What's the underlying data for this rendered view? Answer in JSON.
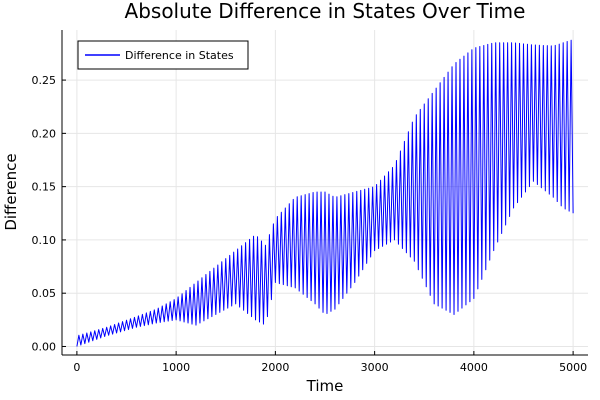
{
  "chart_data": {
    "type": "line",
    "title": "Absolute Difference in States Over Time",
    "xlabel": "Time",
    "ylabel": "Difference",
    "xlim": [
      -150,
      5150
    ],
    "ylim": [
      -0.008,
      0.297
    ],
    "xticks": [
      0,
      1000,
      2000,
      3000,
      4000,
      5000
    ],
    "xtick_labels": [
      "0",
      "1000",
      "2000",
      "3000",
      "4000",
      "5000"
    ],
    "yticks": [
      0.0,
      0.05,
      0.1,
      0.15,
      0.2,
      0.25
    ],
    "ytick_labels": [
      "0.00",
      "0.05",
      "0.10",
      "0.15",
      "0.20",
      "0.25"
    ],
    "grid": true,
    "legend_position": "top-left",
    "series": [
      {
        "name": "Difference in States",
        "color": "#0000ff",
        "period": 40,
        "envelope": {
          "x": [
            0,
            300,
            600,
            800,
            1000,
            1200,
            1400,
            1600,
            1800,
            1900,
            2000,
            2200,
            2400,
            2500,
            2600,
            2800,
            3000,
            3200,
            3400,
            3600,
            3800,
            4000,
            4200,
            4400,
            4600,
            4800,
            4900,
            5000
          ],
          "upper": [
            0.01,
            0.018,
            0.028,
            0.035,
            0.045,
            0.06,
            0.075,
            0.09,
            0.105,
            0.095,
            0.12,
            0.14,
            0.145,
            0.145,
            0.14,
            0.145,
            0.15,
            0.17,
            0.215,
            0.24,
            0.265,
            0.28,
            0.285,
            0.285,
            0.283,
            0.282,
            0.285,
            0.288
          ],
          "lower": [
            0.0,
            0.01,
            0.018,
            0.022,
            0.025,
            0.02,
            0.03,
            0.04,
            0.025,
            0.02,
            0.06,
            0.055,
            0.04,
            0.03,
            0.035,
            0.06,
            0.09,
            0.1,
            0.08,
            0.04,
            0.03,
            0.045,
            0.09,
            0.13,
            0.155,
            0.14,
            0.13,
            0.125
          ]
        }
      }
    ]
  }
}
